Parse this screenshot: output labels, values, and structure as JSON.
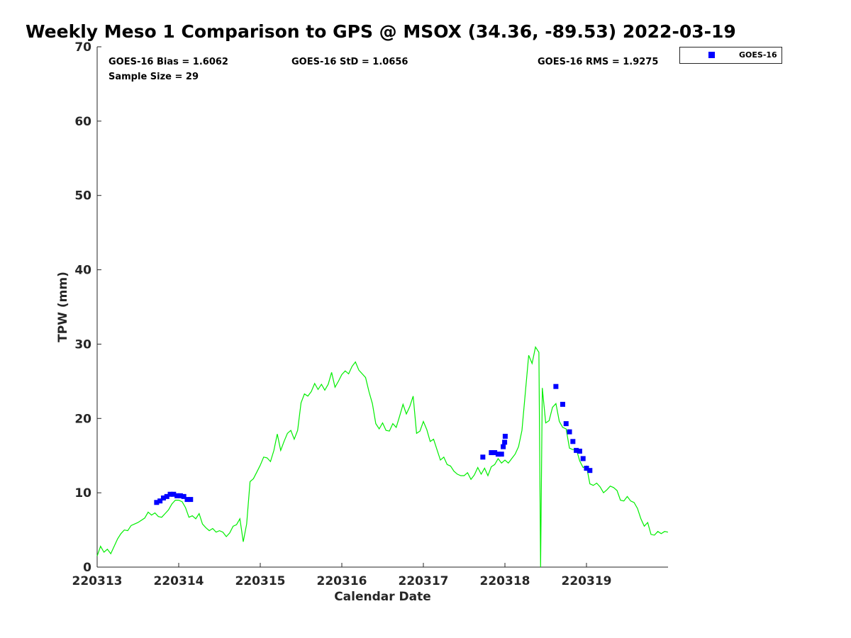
{
  "chart_data": {
    "type": "line",
    "title": "Weekly Meso 1 Comparison to GPS @ MSOX (34.36, -89.53) 2022-03-19",
    "xlabel": "Calendar Date",
    "ylabel": "TPW (mm)",
    "ylim": [
      0,
      70
    ],
    "xlim": [
      "2022-03-13T00:00",
      "2022-03-20T00:00"
    ],
    "x_tick_labels": [
      "220313",
      "220314",
      "220315",
      "220316",
      "220317",
      "220318",
      "220319"
    ],
    "y_tick_labels": [
      "0",
      "10",
      "20",
      "30",
      "40",
      "50",
      "60",
      "70"
    ],
    "grid": false,
    "legend_position": "top-right",
    "stats": {
      "bias": "GOES-16 Bias = 1.6062",
      "std": "GOES-16 StD = 1.0656",
      "rms": "GOES-16 RMS = 1.9275",
      "sample": "Sample Size = 29"
    },
    "colors": {
      "gps_line": "#00ee00",
      "goes_marker": "#0000ff",
      "axis": "#262626"
    },
    "series": [
      {
        "name": "",
        "style": "line",
        "points": [
          [
            "2022-03-13T00:00",
            1.5
          ],
          [
            "2022-03-13T01:00",
            2.8
          ],
          [
            "2022-03-13T02:00",
            2.0
          ],
          [
            "2022-03-13T03:00",
            2.4
          ],
          [
            "2022-03-13T04:00",
            1.8
          ],
          [
            "2022-03-13T06:00",
            3.8
          ],
          [
            "2022-03-13T07:00",
            4.5
          ],
          [
            "2022-03-13T08:00",
            5.0
          ],
          [
            "2022-03-13T09:00",
            4.9
          ],
          [
            "2022-03-13T10:00",
            5.6
          ],
          [
            "2022-03-13T12:00",
            6.0
          ],
          [
            "2022-03-13T14:00",
            6.6
          ],
          [
            "2022-03-13T15:00",
            7.4
          ],
          [
            "2022-03-13T16:00",
            7.0
          ],
          [
            "2022-03-13T17:00",
            7.3
          ],
          [
            "2022-03-13T18:00",
            6.8
          ],
          [
            "2022-03-13T19:00",
            6.7
          ],
          [
            "2022-03-13T20:00",
            7.2
          ],
          [
            "2022-03-13T21:00",
            7.7
          ],
          [
            "2022-03-13T22:00",
            8.5
          ],
          [
            "2022-03-13T23:00",
            9.0
          ],
          [
            "2022-03-14T00:00",
            9.0
          ],
          [
            "2022-03-14T01:00",
            8.8
          ],
          [
            "2022-03-14T02:00",
            8.0
          ],
          [
            "2022-03-14T03:00",
            6.7
          ],
          [
            "2022-03-14T04:00",
            6.9
          ],
          [
            "2022-03-14T05:00",
            6.5
          ],
          [
            "2022-03-14T06:00",
            7.2
          ],
          [
            "2022-03-14T07:00",
            5.8
          ],
          [
            "2022-03-14T08:00",
            5.3
          ],
          [
            "2022-03-14T09:00",
            4.9
          ],
          [
            "2022-03-14T10:00",
            5.2
          ],
          [
            "2022-03-14T11:00",
            4.7
          ],
          [
            "2022-03-14T12:00",
            4.9
          ],
          [
            "2022-03-14T13:00",
            4.7
          ],
          [
            "2022-03-14T14:00",
            4.1
          ],
          [
            "2022-03-14T15:00",
            4.6
          ],
          [
            "2022-03-14T16:00",
            5.5
          ],
          [
            "2022-03-14T17:00",
            5.7
          ],
          [
            "2022-03-14T18:00",
            6.5
          ],
          [
            "2022-03-14T19:00",
            3.4
          ],
          [
            "2022-03-14T20:00",
            5.8
          ],
          [
            "2022-03-14T21:00",
            11.5
          ],
          [
            "2022-03-14T22:00",
            11.9
          ],
          [
            "2022-03-14T23:00",
            12.8
          ],
          [
            "2022-03-15T00:00",
            13.7
          ],
          [
            "2022-03-15T01:00",
            14.8
          ],
          [
            "2022-03-15T02:00",
            14.7
          ],
          [
            "2022-03-15T03:00",
            14.2
          ],
          [
            "2022-03-15T04:00",
            15.7
          ],
          [
            "2022-03-15T05:00",
            17.9
          ],
          [
            "2022-03-15T06:00",
            15.7
          ],
          [
            "2022-03-15T07:00",
            16.9
          ],
          [
            "2022-03-15T08:00",
            18.0
          ],
          [
            "2022-03-15T09:00",
            18.4
          ],
          [
            "2022-03-15T10:00",
            17.2
          ],
          [
            "2022-03-15T11:00",
            18.4
          ],
          [
            "2022-03-15T12:00",
            22.1
          ],
          [
            "2022-03-15T13:00",
            23.3
          ],
          [
            "2022-03-15T14:00",
            23.0
          ],
          [
            "2022-03-15T15:00",
            23.6
          ],
          [
            "2022-03-15T16:00",
            24.7
          ],
          [
            "2022-03-15T17:00",
            23.9
          ],
          [
            "2022-03-15T18:00",
            24.6
          ],
          [
            "2022-03-15T19:00",
            23.8
          ],
          [
            "2022-03-15T20:00",
            24.6
          ],
          [
            "2022-03-15T21:00",
            26.2
          ],
          [
            "2022-03-15T22:00",
            24.2
          ],
          [
            "2022-03-15T23:00",
            25.0
          ],
          [
            "2022-03-16T00:00",
            25.9
          ],
          [
            "2022-03-16T01:00",
            26.4
          ],
          [
            "2022-03-16T02:00",
            26.0
          ],
          [
            "2022-03-16T03:00",
            27.0
          ],
          [
            "2022-03-16T04:00",
            27.6
          ],
          [
            "2022-03-16T05:00",
            26.5
          ],
          [
            "2022-03-16T06:00",
            26.0
          ],
          [
            "2022-03-16T07:00",
            25.5
          ],
          [
            "2022-03-16T08:00",
            23.6
          ],
          [
            "2022-03-16T09:00",
            22.0
          ],
          [
            "2022-03-16T10:00",
            19.3
          ],
          [
            "2022-03-16T11:00",
            18.6
          ],
          [
            "2022-03-16T12:00",
            19.4
          ],
          [
            "2022-03-16T13:00",
            18.4
          ],
          [
            "2022-03-16T14:00",
            18.3
          ],
          [
            "2022-03-16T15:00",
            19.3
          ],
          [
            "2022-03-16T16:00",
            18.8
          ],
          [
            "2022-03-16T17:00",
            20.3
          ],
          [
            "2022-03-16T18:00",
            21.9
          ],
          [
            "2022-03-16T19:00",
            20.6
          ],
          [
            "2022-03-16T20:00",
            21.6
          ],
          [
            "2022-03-16T21:00",
            23.0
          ],
          [
            "2022-03-16T22:00",
            18.0
          ],
          [
            "2022-03-16T23:00",
            18.3
          ],
          [
            "2022-03-17T00:00",
            19.6
          ],
          [
            "2022-03-17T01:00",
            18.5
          ],
          [
            "2022-03-17T02:00",
            16.9
          ],
          [
            "2022-03-17T03:00",
            17.2
          ],
          [
            "2022-03-17T04:00",
            15.8
          ],
          [
            "2022-03-17T05:00",
            14.4
          ],
          [
            "2022-03-17T06:00",
            14.8
          ],
          [
            "2022-03-17T07:00",
            13.8
          ],
          [
            "2022-03-17T08:00",
            13.6
          ],
          [
            "2022-03-17T09:00",
            12.9
          ],
          [
            "2022-03-17T10:00",
            12.5
          ],
          [
            "2022-03-17T11:00",
            12.3
          ],
          [
            "2022-03-17T12:00",
            12.3
          ],
          [
            "2022-03-17T13:00",
            12.7
          ],
          [
            "2022-03-17T14:00",
            11.8
          ],
          [
            "2022-03-17T15:00",
            12.4
          ],
          [
            "2022-03-17T16:00",
            13.4
          ],
          [
            "2022-03-17T17:00",
            12.5
          ],
          [
            "2022-03-17T18:00",
            13.3
          ],
          [
            "2022-03-17T19:00",
            12.3
          ],
          [
            "2022-03-17T20:00",
            13.5
          ],
          [
            "2022-03-17T21:00",
            13.8
          ],
          [
            "2022-03-17T22:00",
            14.6
          ],
          [
            "2022-03-17T23:00",
            14.0
          ],
          [
            "2022-03-18T00:00",
            14.4
          ],
          [
            "2022-03-18T01:00",
            14.0
          ],
          [
            "2022-03-18T02:00",
            14.6
          ],
          [
            "2022-03-18T03:00",
            15.2
          ],
          [
            "2022-03-18T04:00",
            16.2
          ],
          [
            "2022-03-18T05:00",
            18.4
          ],
          [
            "2022-03-18T06:00",
            23.5
          ],
          [
            "2022-03-18T07:00",
            28.5
          ],
          [
            "2022-03-18T08:00",
            27.4
          ],
          [
            "2022-03-18T09:00",
            29.6
          ],
          [
            "2022-03-18T10:00",
            28.9
          ],
          [
            "2022-03-18T10:30",
            0.0
          ],
          [
            "2022-03-18T11:00",
            24.1
          ],
          [
            "2022-03-18T12:00",
            19.4
          ],
          [
            "2022-03-18T13:00",
            19.7
          ],
          [
            "2022-03-18T14:00",
            21.5
          ],
          [
            "2022-03-18T15:00",
            22.0
          ],
          [
            "2022-03-18T16:00",
            19.6
          ],
          [
            "2022-03-18T17:00",
            18.8
          ],
          [
            "2022-03-18T18:00",
            18.6
          ],
          [
            "2022-03-18T19:00",
            16.0
          ],
          [
            "2022-03-18T20:00",
            15.8
          ],
          [
            "2022-03-18T21:00",
            15.9
          ],
          [
            "2022-03-18T22:00",
            14.3
          ],
          [
            "2022-03-18T23:00",
            13.4
          ],
          [
            "2022-03-19T00:00",
            13.6
          ],
          [
            "2022-03-19T01:00",
            11.2
          ],
          [
            "2022-03-19T02:00",
            11.0
          ],
          [
            "2022-03-19T03:00",
            11.3
          ],
          [
            "2022-03-19T04:00",
            10.8
          ],
          [
            "2022-03-19T05:00",
            10.0
          ],
          [
            "2022-03-19T06:00",
            10.4
          ],
          [
            "2022-03-19T07:00",
            10.9
          ],
          [
            "2022-03-19T08:00",
            10.7
          ],
          [
            "2022-03-19T09:00",
            10.3
          ],
          [
            "2022-03-19T10:00",
            9.0
          ],
          [
            "2022-03-19T11:00",
            8.9
          ],
          [
            "2022-03-19T12:00",
            9.5
          ],
          [
            "2022-03-19T13:00",
            8.9
          ],
          [
            "2022-03-19T14:00",
            8.7
          ],
          [
            "2022-03-19T15:00",
            7.9
          ],
          [
            "2022-03-19T16:00",
            6.5
          ],
          [
            "2022-03-19T17:00",
            5.5
          ],
          [
            "2022-03-19T18:00",
            6.0
          ],
          [
            "2022-03-19T19:00",
            4.4
          ],
          [
            "2022-03-19T20:00",
            4.3
          ],
          [
            "2022-03-19T21:00",
            4.8
          ],
          [
            "2022-03-19T22:00",
            4.5
          ],
          [
            "2022-03-19T23:00",
            4.8
          ],
          [
            "2022-03-19T23:59",
            4.7
          ]
        ]
      },
      {
        "name": "GOES-16",
        "style": "marker",
        "points": [
          [
            "2022-03-13T17:30",
            8.7
          ],
          [
            "2022-03-13T18:30",
            8.9
          ],
          [
            "2022-03-13T19:30",
            9.3
          ],
          [
            "2022-03-13T20:30",
            9.5
          ],
          [
            "2022-03-13T21:30",
            9.8
          ],
          [
            "2022-03-13T22:30",
            9.8
          ],
          [
            "2022-03-13T23:30",
            9.6
          ],
          [
            "2022-03-14T00:30",
            9.6
          ],
          [
            "2022-03-14T01:30",
            9.5
          ],
          [
            "2022-03-14T02:30",
            9.1
          ],
          [
            "2022-03-14T03:30",
            9.1
          ],
          [
            "2022-03-17T17:30",
            14.8
          ],
          [
            "2022-03-17T20:00",
            15.4
          ],
          [
            "2022-03-17T21:00",
            15.4
          ],
          [
            "2022-03-17T22:00",
            15.2
          ],
          [
            "2022-03-17T23:00",
            15.2
          ],
          [
            "2022-03-17T23:30",
            16.2
          ],
          [
            "2022-03-17T23:55",
            16.8
          ],
          [
            "2022-03-18T00:05",
            17.6
          ],
          [
            "2022-03-18T15:00",
            24.3
          ],
          [
            "2022-03-18T17:00",
            21.9
          ],
          [
            "2022-03-18T18:00",
            19.3
          ],
          [
            "2022-03-18T19:00",
            18.2
          ],
          [
            "2022-03-18T20:00",
            16.9
          ],
          [
            "2022-03-18T21:00",
            15.7
          ],
          [
            "2022-03-18T22:00",
            15.6
          ],
          [
            "2022-03-18T23:00",
            14.6
          ],
          [
            "2022-03-19T00:00",
            13.3
          ],
          [
            "2022-03-19T01:00",
            13.0
          ]
        ]
      }
    ]
  }
}
